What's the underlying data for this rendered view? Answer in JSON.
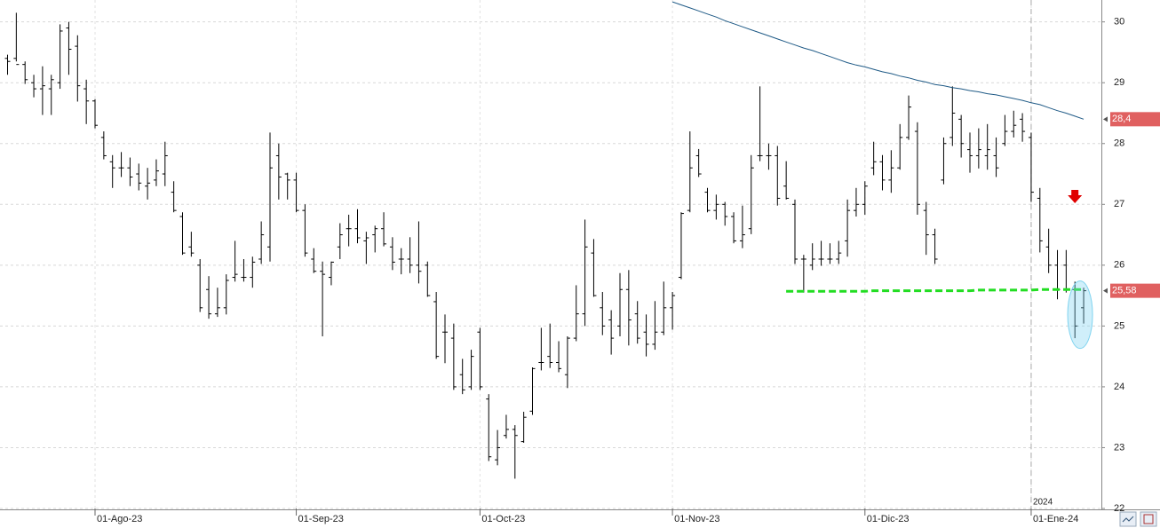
{
  "chart_data": {
    "type": "ohlc",
    "categories": [
      null,
      null,
      null,
      null,
      null,
      null,
      null,
      null,
      null,
      null,
      "01-Ago-23",
      null,
      null,
      null,
      null,
      null,
      null,
      null,
      null,
      null,
      null,
      null,
      null,
      null,
      null,
      null,
      null,
      null,
      null,
      null,
      null,
      null,
      null,
      "01-Sep-23",
      null,
      null,
      null,
      null,
      null,
      null,
      null,
      null,
      null,
      null,
      null,
      null,
      null,
      null,
      null,
      null,
      null,
      null,
      null,
      null,
      "01-Oct-23",
      null,
      null,
      null,
      null,
      null,
      null,
      null,
      null,
      null,
      null,
      null,
      null,
      null,
      null,
      null,
      null,
      null,
      null,
      null,
      null,
      null,
      "01-Nov-23",
      null,
      null,
      null,
      null,
      null,
      null,
      null,
      null,
      null,
      null,
      null,
      null,
      null,
      null,
      null,
      null,
      null,
      null,
      null,
      null,
      null,
      "01-Dic-23",
      null,
      null,
      null,
      null,
      null,
      null,
      null,
      null,
      null,
      null,
      null,
      null,
      null,
      null,
      null,
      null,
      null,
      null,
      "01-Ene-24",
      null,
      null,
      null,
      null,
      null,
      null
    ],
    "open": [
      29.4,
      29.4,
      29.3,
      29.0,
      28.9,
      28.9,
      29.0,
      29.9,
      29.6,
      28.9,
      28.7,
      28.1,
      27.7,
      27.6,
      27.6,
      27.5,
      27.3,
      27.4,
      27.5,
      27.2,
      26.8,
      26.3,
      26.0,
      25.6,
      25.2,
      25.3,
      25.8,
      25.8,
      25.8,
      26.1,
      26.3,
      27.8,
      27.5,
      27.4,
      26.9,
      26.1,
      25.9,
      25.8,
      26.3,
      26.6,
      26.6,
      26.4,
      26.5,
      26.6,
      26.3,
      26.1,
      26.1,
      26.0,
      26.0,
      25.4,
      24.9,
      24.8,
      24.2,
      24.0,
      24.9,
      23.8,
      22.8,
      23.2,
      23.3,
      23.1,
      23.6,
      24.4,
      24.5,
      24.4,
      24.2,
      24.8,
      25.2,
      26.2,
      25.3,
      25.1,
      25.0,
      25.6,
      25.2,
      24.9,
      24.7,
      24.9,
      25.3,
      25.8,
      26.9,
      27.8,
      27.2,
      26.9,
      27.0,
      26.8,
      26.4,
      26.6,
      27.8,
      27.8,
      27.8,
      27.3,
      27.0,
      26.1,
      26.0,
      26.1,
      26.1,
      26.1,
      26.4,
      26.9,
      27.0,
      27.6,
      27.7,
      27.4,
      27.6,
      28.1,
      28.2,
      26.9,
      26.5,
      27.4,
      28.1,
      28.4,
      27.9,
      27.8,
      27.8,
      27.8,
      28.0,
      28.2,
      28.4,
      28.1,
      27.1,
      26.3,
      26.0,
      26.0,
      25.6,
      25.3
    ],
    "high": [
      29.46,
      30.15,
      29.35,
      29.13,
      29.27,
      29.13,
      29.96,
      30.0,
      29.78,
      29.05,
      28.73,
      28.2,
      27.81,
      27.86,
      27.77,
      27.67,
      27.6,
      27.74,
      28.03,
      27.38,
      26.87,
      26.55,
      26.1,
      25.82,
      25.63,
      25.85,
      26.4,
      26.1,
      26.14,
      26.72,
      28.18,
      28.0,
      27.52,
      27.52,
      27.0,
      26.28,
      26.06,
      26.06,
      26.69,
      26.83,
      26.92,
      26.55,
      26.65,
      26.87,
      26.46,
      26.28,
      26.46,
      26.72,
      26.06,
      25.56,
      25.19,
      25.04,
      24.46,
      24.61,
      24.97,
      23.88,
      23.29,
      23.54,
      23.37,
      23.59,
      24.32,
      24.97,
      25.04,
      24.75,
      24.83,
      25.67,
      26.75,
      26.43,
      25.56,
      25.26,
      25.87,
      25.92,
      25.41,
      25.19,
      25.41,
      25.73,
      25.56,
      26.87,
      28.2,
      27.91,
      27.27,
      27.16,
      27.04,
      26.87,
      26.98,
      27.81,
      28.94,
      28.0,
      27.96,
      27.71,
      27.08,
      26.17,
      26.36,
      26.4,
      26.36,
      26.4,
      27.08,
      27.27,
      27.38,
      28.03,
      27.81,
      27.89,
      28.32,
      28.79,
      28.35,
      27.04,
      26.6,
      28.1,
      28.94,
      28.47,
      28.18,
      28.25,
      28.32,
      28.1,
      28.47,
      28.54,
      28.5,
      28.18,
      27.27,
      26.6,
      26.25,
      26.25,
      25.73,
      25.63
    ],
    "low": [
      29.13,
      29.35,
      28.98,
      28.76,
      28.47,
      28.47,
      28.9,
      29.13,
      28.69,
      28.32,
      28.25,
      27.74,
      27.27,
      27.45,
      27.3,
      27.23,
      27.08,
      27.3,
      27.3,
      26.87,
      26.17,
      26.14,
      25.23,
      25.12,
      25.15,
      25.19,
      25.73,
      25.73,
      25.63,
      26.02,
      26.06,
      27.08,
      27.08,
      26.87,
      26.14,
      25.87,
      24.83,
      25.67,
      26.1,
      26.31,
      26.36,
      26.02,
      26.21,
      26.31,
      25.92,
      25.85,
      25.87,
      25.7,
      25.48,
      24.46,
      24.39,
      23.95,
      23.88,
      23.95,
      23.95,
      22.78,
      22.71,
      23.15,
      22.49,
      23.08,
      23.54,
      24.27,
      24.31,
      24.24,
      23.98,
      24.75,
      25.0,
      25.48,
      24.85,
      24.53,
      24.83,
      24.68,
      24.71,
      24.5,
      24.61,
      24.85,
      24.94,
      25.77,
      26.87,
      27.45,
      26.87,
      26.75,
      26.65,
      26.36,
      26.28,
      26.51,
      27.71,
      27.57,
      26.98,
      27.08,
      26.02,
      25.55,
      25.92,
      25.99,
      26.02,
      26.02,
      26.14,
      26.8,
      26.83,
      27.48,
      27.23,
      27.19,
      27.57,
      28.06,
      26.83,
      26.17,
      26.02,
      27.33,
      27.96,
      27.77,
      27.52,
      27.59,
      27.57,
      27.45,
      27.96,
      28.1,
      28.03,
      27.04,
      26.21,
      25.87,
      25.44,
      25.55,
      24.8,
      25.04
    ],
    "close": [
      29.35,
      29.3,
      29.05,
      28.9,
      28.95,
      29.05,
      29.85,
      29.55,
      28.95,
      28.7,
      28.3,
      27.8,
      27.6,
      27.6,
      27.45,
      27.35,
      27.35,
      27.55,
      27.8,
      26.9,
      26.2,
      26.2,
      25.3,
      25.2,
      25.3,
      25.75,
      25.85,
      25.8,
      26.05,
      26.5,
      27.6,
      27.45,
      27.4,
      26.9,
      26.2,
      25.9,
      25.85,
      26.05,
      26.5,
      26.6,
      26.45,
      26.45,
      26.6,
      26.35,
      26.05,
      26.1,
      26.0,
      25.9,
      25.5,
      24.5,
      24.9,
      24.0,
      23.95,
      24.5,
      24.0,
      22.85,
      23.0,
      23.3,
      23.2,
      23.5,
      24.3,
      24.4,
      24.4,
      24.3,
      24.8,
      25.2,
      26.3,
      25.5,
      25.0,
      24.8,
      25.6,
      25.1,
      24.8,
      24.7,
      24.9,
      25.3,
      25.5,
      26.85,
      27.6,
      27.5,
      26.9,
      27.0,
      26.8,
      26.4,
      26.5,
      27.6,
      27.8,
      27.8,
      27.1,
      27.1,
      26.1,
      26.1,
      26.1,
      26.1,
      26.1,
      26.2,
      26.9,
      27.0,
      27.3,
      27.7,
      27.4,
      27.6,
      28.1,
      28.6,
      27.0,
      26.5,
      26.1,
      28.0,
      28.5,
      28.0,
      27.8,
      27.9,
      27.9,
      27.6,
      28.2,
      28.3,
      28.2,
      27.2,
      26.4,
      26.0,
      25.6,
      25.6,
      25.0,
      25.58
    ],
    "color": "#000000",
    "moving_average": {
      "color": "#1f5a86",
      "values": [
        null,
        null,
        null,
        null,
        null,
        null,
        null,
        null,
        null,
        null,
        null,
        null,
        null,
        null,
        null,
        null,
        null,
        null,
        null,
        null,
        null,
        null,
        null,
        null,
        null,
        null,
        null,
        null,
        null,
        null,
        null,
        null,
        null,
        null,
        null,
        null,
        null,
        null,
        null,
        null,
        null,
        null,
        null,
        null,
        null,
        null,
        null,
        null,
        null,
        null,
        null,
        null,
        null,
        null,
        null,
        null,
        null,
        null,
        null,
        null,
        null,
        null,
        null,
        null,
        null,
        null,
        null,
        null,
        null,
        null,
        null,
        null,
        null,
        null,
        null,
        null,
        30.33,
        30.28,
        30.23,
        30.18,
        30.13,
        30.08,
        30.02,
        29.97,
        29.92,
        29.87,
        29.82,
        29.77,
        29.72,
        29.67,
        29.62,
        29.57,
        29.53,
        29.48,
        29.43,
        29.38,
        29.33,
        29.29,
        29.26,
        29.22,
        29.18,
        29.15,
        29.11,
        29.08,
        29.04,
        29.01,
        28.97,
        28.95,
        28.92,
        28.9,
        28.87,
        28.85,
        28.82,
        28.8,
        28.77,
        28.74,
        28.71,
        28.67,
        28.64,
        28.59,
        28.54,
        28.5,
        28.45,
        28.4
      ]
    },
    "support": {
      "color": "#22dd22",
      "values": [
        null,
        null,
        null,
        null,
        null,
        null,
        null,
        null,
        null,
        null,
        null,
        null,
        null,
        null,
        null,
        null,
        null,
        null,
        null,
        null,
        null,
        null,
        null,
        null,
        null,
        null,
        null,
        null,
        null,
        null,
        null,
        null,
        null,
        null,
        null,
        null,
        null,
        null,
        null,
        null,
        null,
        null,
        null,
        null,
        null,
        null,
        null,
        null,
        null,
        null,
        null,
        null,
        null,
        null,
        null,
        null,
        null,
        null,
        null,
        null,
        null,
        null,
        null,
        null,
        null,
        null,
        null,
        null,
        null,
        null,
        null,
        null,
        null,
        null,
        null,
        null,
        null,
        null,
        null,
        null,
        null,
        null,
        null,
        null,
        null,
        null,
        null,
        null,
        null,
        25.57,
        25.57,
        25.57,
        25.57,
        25.57,
        25.57,
        25.57,
        25.57,
        25.57,
        25.57,
        25.58,
        25.58,
        25.58,
        25.58,
        25.58,
        25.58,
        25.58,
        25.58,
        25.58,
        25.58,
        25.58,
        25.58,
        25.59,
        25.59,
        25.59,
        25.59,
        25.59,
        25.59,
        25.59,
        25.6,
        25.6,
        25.6,
        25.6,
        25.6,
        25.6
      ]
    },
    "price_tags": [
      {
        "value": 28.4,
        "label": "28,4"
      },
      {
        "value": 25.58,
        "label": "25,58"
      }
    ],
    "year_label": "2024",
    "ylim": [
      22,
      30.36
    ],
    "yticks": [
      22,
      23,
      24,
      25,
      26,
      27,
      28,
      29,
      30
    ],
    "grid": true
  }
}
